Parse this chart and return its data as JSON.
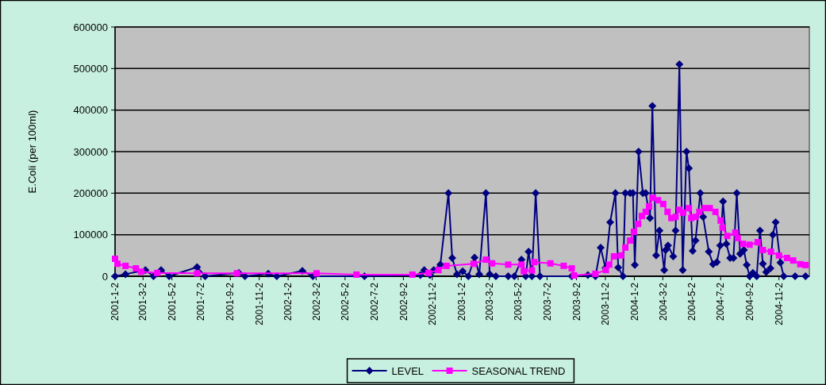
{
  "chart_data": {
    "type": "line",
    "ylabel": "E.Coli (per 100ml)",
    "xlim": [
      "2001-01-02",
      "2005-01-05"
    ],
    "xticks": [
      {
        "value": "2001-01-02",
        "label": "2001-1-2"
      },
      {
        "value": "2001-03-02",
        "label": "2001-3-2"
      },
      {
        "value": "2001-05-02",
        "label": "2001-5-2"
      },
      {
        "value": "2001-07-02",
        "label": "2001-7-2"
      },
      {
        "value": "2001-09-02",
        "label": "2001-9-2"
      },
      {
        "value": "2001-11-02",
        "label": "2001-11-2"
      },
      {
        "value": "2002-01-02",
        "label": "2002-1-2"
      },
      {
        "value": "2002-03-02",
        "label": "2002-3-2"
      },
      {
        "value": "2002-05-02",
        "label": "2002-5-2"
      },
      {
        "value": "2002-07-02",
        "label": "2002-7-2"
      },
      {
        "value": "2002-09-02",
        "label": "2002-9-2"
      },
      {
        "value": "2002-11-02",
        "label": "2002-11-2"
      },
      {
        "value": "2003-01-02",
        "label": "2003-1-2"
      },
      {
        "value": "2003-03-02",
        "label": "2003-3-2"
      },
      {
        "value": "2003-05-02",
        "label": "2003-5-2"
      },
      {
        "value": "2003-07-02",
        "label": "2003-7-2"
      },
      {
        "value": "2003-09-02",
        "label": "2003-9-2"
      },
      {
        "value": "2003-11-02",
        "label": "2003-11-2"
      },
      {
        "value": "2004-01-02",
        "label": "2004-1-2"
      },
      {
        "value": "2004-03-02",
        "label": "2004-3-2"
      },
      {
        "value": "2004-05-02",
        "label": "2004-5-2"
      },
      {
        "value": "2004-07-02",
        "label": "2004-7-2"
      },
      {
        "value": "2004-09-02",
        "label": "2004-9-2"
      },
      {
        "value": "2004-11-02",
        "label": "2004-11-2"
      }
    ],
    "ylim": [
      0,
      600000
    ],
    "yticks": [
      0,
      100000,
      200000,
      300000,
      400000,
      500000,
      600000
    ],
    "grid": "y",
    "legend": "bottom",
    "line_style": "solid",
    "series": [
      {
        "name": "LEVEL",
        "color": "#000080",
        "marker": "diamond",
        "x": [
          "2001-01-02",
          "2001-01-24",
          "2001-03-07",
          "2001-03-24",
          "2001-04-09",
          "2001-04-26",
          "2001-06-24",
          "2001-07-11",
          "2001-09-20",
          "2001-10-03",
          "2001-11-21",
          "2001-12-09",
          "2002-02-01",
          "2002-02-23",
          "2002-06-12",
          "2002-10-08",
          "2002-10-16",
          "2002-10-28",
          "2002-11-05",
          "2002-11-19",
          "2002-12-06",
          "2002-12-14",
          "2002-12-24",
          "2003-01-05",
          "2003-01-17",
          "2003-01-30",
          "2003-02-09",
          "2003-02-23",
          "2003-03-03",
          "2003-03-16",
          "2003-04-11",
          "2003-04-24",
          "2003-05-09",
          "2003-05-18",
          "2003-05-24",
          "2003-05-31",
          "2003-06-08",
          "2003-06-17",
          "2003-08-23",
          "2003-09-26",
          "2003-10-12",
          "2003-10-23",
          "2003-11-02",
          "2003-11-12",
          "2003-11-23",
          "2003-11-29",
          "2003-12-09",
          "2003-12-14",
          "2003-12-24",
          "2003-12-30",
          "2004-01-03",
          "2004-01-11",
          "2004-01-20",
          "2004-01-26",
          "2004-02-04",
          "2004-02-09",
          "2004-02-17",
          "2004-02-24",
          "2004-03-05",
          "2004-03-08",
          "2004-03-13",
          "2004-03-24",
          "2004-03-29",
          "2004-04-06",
          "2004-04-13",
          "2004-04-21",
          "2004-04-26",
          "2004-05-04",
          "2004-05-10",
          "2004-05-20",
          "2004-05-26",
          "2004-06-07",
          "2004-06-16",
          "2004-06-24",
          "2004-07-01",
          "2004-07-07",
          "2004-07-14",
          "2004-07-22",
          "2004-07-29",
          "2004-08-05",
          "2004-08-12",
          "2004-08-20",
          "2004-08-26",
          "2004-09-01",
          "2004-09-08",
          "2004-09-16",
          "2004-09-23",
          "2004-09-29",
          "2004-10-06",
          "2004-10-15",
          "2004-10-20",
          "2004-10-26",
          "2004-11-05",
          "2004-11-12",
          "2004-12-06",
          "2004-12-28"
        ],
        "values": [
          0,
          5000,
          15000,
          0,
          15000,
          0,
          22000,
          0,
          8000,
          0,
          6000,
          0,
          13000,
          0,
          0,
          3000,
          15000,
          3000,
          15000,
          28000,
          200000,
          44000,
          5000,
          12000,
          0,
          45000,
          5000,
          200000,
          5000,
          0,
          0,
          0,
          40000,
          0,
          59000,
          0,
          200000,
          0,
          0,
          3000,
          0,
          69000,
          20000,
          130000,
          200000,
          21000,
          0,
          200000,
          200000,
          200000,
          27000,
          300000,
          200000,
          200000,
          140000,
          410000,
          50000,
          110000,
          15000,
          63000,
          74000,
          48000,
          110000,
          510000,
          15000,
          300000,
          260000,
          61000,
          86000,
          200000,
          143000,
          59000,
          29000,
          34000,
          74000,
          180000,
          78000,
          44000,
          44000,
          200000,
          54000,
          63000,
          27000,
          0,
          8000,
          0,
          110000,
          30000,
          10000,
          19000,
          100000,
          130000,
          33000,
          0,
          0,
          0
        ]
      },
      {
        "name": "SEASONAL TREND",
        "color": "#ff00ff",
        "marker": "square",
        "x": [
          "2001-01-02",
          "2001-01-07",
          "2001-01-24",
          "2001-02-15",
          "2001-02-26",
          "2001-04-01",
          "2001-06-24",
          "2001-09-16",
          "2002-03-03",
          "2002-05-26",
          "2002-09-21",
          "2002-10-25",
          "2002-11-15",
          "2002-12-02",
          "2003-01-28",
          "2003-02-23",
          "2003-03-08",
          "2003-04-11",
          "2003-05-09",
          "2003-05-14",
          "2003-05-31",
          "2003-06-05",
          "2003-07-09",
          "2003-08-06",
          "2003-08-23",
          "2003-08-28",
          "2003-10-12",
          "2003-11-03",
          "2003-11-10",
          "2003-11-20",
          "2003-12-05",
          "2003-12-14",
          "2003-12-24",
          "2004-01-01",
          "2004-01-10",
          "2004-01-18",
          "2004-01-26",
          "2004-02-02",
          "2004-02-10",
          "2004-02-21",
          "2004-03-03",
          "2004-03-12",
          "2004-03-20",
          "2004-03-29",
          "2004-04-06",
          "2004-04-14",
          "2004-04-26",
          "2004-05-01",
          "2004-05-10",
          "2004-05-18",
          "2004-05-30",
          "2004-06-09",
          "2004-06-21",
          "2004-07-02",
          "2004-07-06",
          "2004-07-16",
          "2004-08-02",
          "2004-08-07",
          "2004-08-18",
          "2004-09-01",
          "2004-09-18",
          "2004-09-29",
          "2004-10-16",
          "2004-11-02",
          "2004-11-19",
          "2004-12-02",
          "2004-12-17",
          "2004-12-28"
        ],
        "values": [
          42000,
          30000,
          25000,
          19000,
          11000,
          8000,
          7000,
          7000,
          7000,
          4000,
          4000,
          8000,
          15000,
          25000,
          30000,
          40000,
          31000,
          28000,
          28000,
          12000,
          14000,
          34000,
          31000,
          25000,
          19000,
          2000,
          6000,
          15000,
          28000,
          48000,
          50000,
          69000,
          86000,
          107000,
          126000,
          145000,
          155000,
          168000,
          189000,
          183000,
          174000,
          155000,
          140000,
          143000,
          160000,
          153000,
          164000,
          140000,
          143000,
          155000,
          164000,
          164000,
          155000,
          134000,
          117000,
          97000,
          105000,
          92000,
          78000,
          76000,
          82000,
          63000,
          59000,
          50000,
          44000,
          38000,
          29000,
          27000
        ]
      }
    ]
  }
}
